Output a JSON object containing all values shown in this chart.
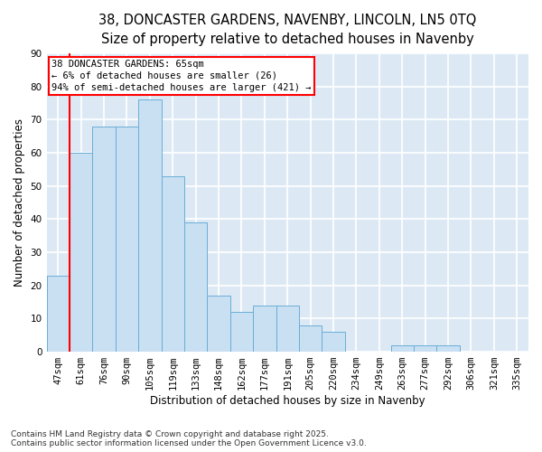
{
  "title_line1": "38, DONCASTER GARDENS, NAVENBY, LINCOLN, LN5 0TQ",
  "title_line2": "Size of property relative to detached houses in Navenby",
  "xlabel": "Distribution of detached houses by size in Navenby",
  "ylabel": "Number of detached properties",
  "categories": [
    "47sqm",
    "61sqm",
    "76sqm",
    "90sqm",
    "105sqm",
    "119sqm",
    "133sqm",
    "148sqm",
    "162sqm",
    "177sqm",
    "191sqm",
    "205sqm",
    "220sqm",
    "234sqm",
    "249sqm",
    "263sqm",
    "277sqm",
    "292sqm",
    "306sqm",
    "321sqm",
    "335sqm"
  ],
  "values": [
    23,
    60,
    68,
    68,
    76,
    53,
    39,
    17,
    12,
    14,
    14,
    8,
    6,
    0,
    0,
    2,
    2,
    2,
    0,
    0,
    0
  ],
  "bar_color": "#c9dff2",
  "bar_edge_color": "#6aaed6",
  "annotation_text": "38 DONCASTER GARDENS: 65sqm\n← 6% of detached houses are smaller (26)\n94% of semi-detached houses are larger (421) →",
  "annotation_box_color": "white",
  "annotation_box_edge": "red",
  "ylim": [
    0,
    90
  ],
  "yticks": [
    0,
    10,
    20,
    30,
    40,
    50,
    60,
    70,
    80,
    90
  ],
  "background_color": "#dce9f5",
  "grid_color": "white",
  "footer_text": "Contains HM Land Registry data © Crown copyright and database right 2025.\nContains public sector information licensed under the Open Government Licence v3.0.",
  "title_fontsize": 10.5,
  "subtitle_fontsize": 9.5,
  "axis_label_fontsize": 8.5,
  "tick_fontsize": 7.5,
  "annotation_fontsize": 7.5,
  "footer_fontsize": 6.5,
  "red_line_bar_index": 1
}
